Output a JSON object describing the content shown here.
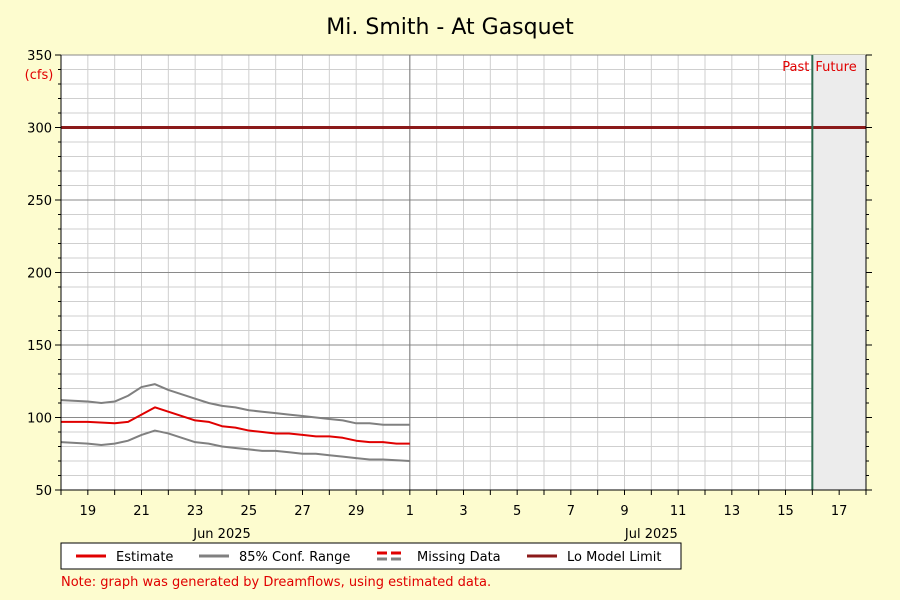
{
  "chart_data": {
    "type": "line",
    "title": "Mi. Smith - At Gasquet",
    "ylabel": "(cfs)",
    "xlabel": "",
    "ylim": [
      50,
      350
    ],
    "yticks": [
      50,
      100,
      150,
      200,
      250,
      300,
      350
    ],
    "xlim": [
      "2025-06-18",
      "2025-07-18"
    ],
    "xticks": [
      {
        "date": "2025-06-19",
        "label": "19"
      },
      {
        "date": "2025-06-21",
        "label": "21"
      },
      {
        "date": "2025-06-23",
        "label": "23"
      },
      {
        "date": "2025-06-25",
        "label": "25"
      },
      {
        "date": "2025-06-27",
        "label": "27"
      },
      {
        "date": "2025-06-29",
        "label": "29"
      },
      {
        "date": "2025-07-01",
        "label": "1"
      },
      {
        "date": "2025-07-03",
        "label": "3"
      },
      {
        "date": "2025-07-05",
        "label": "5"
      },
      {
        "date": "2025-07-07",
        "label": "7"
      },
      {
        "date": "2025-07-09",
        "label": "9"
      },
      {
        "date": "2025-07-11",
        "label": "11"
      },
      {
        "date": "2025-07-13",
        "label": "13"
      },
      {
        "date": "2025-07-15",
        "label": "15"
      },
      {
        "date": "2025-07-17",
        "label": "17"
      }
    ],
    "month_labels": [
      {
        "date": "2025-06-24",
        "label": "Jun 2025"
      },
      {
        "date": "2025-07-10",
        "label": "Jul 2025"
      }
    ],
    "month_boundary": "2025-07-01",
    "now_marker": {
      "date": "2025-07-16",
      "past_label": "Past",
      "future_label": "Future"
    },
    "series": [
      {
        "name": "Estimate",
        "color": "#e00000",
        "points": [
          [
            "2025-06-18",
            97
          ],
          [
            "2025-06-19",
            97
          ],
          [
            "2025-06-20",
            96
          ],
          [
            "2025-06-20.5",
            97
          ],
          [
            "2025-06-21",
            102
          ],
          [
            "2025-06-21.5",
            107
          ],
          [
            "2025-06-22",
            104
          ],
          [
            "2025-06-22.5",
            101
          ],
          [
            "2025-06-23",
            98
          ],
          [
            "2025-06-23.5",
            97
          ],
          [
            "2025-06-24",
            94
          ],
          [
            "2025-06-24.5",
            93
          ],
          [
            "2025-06-25",
            91
          ],
          [
            "2025-06-25.5",
            90
          ],
          [
            "2025-06-26",
            89
          ],
          [
            "2025-06-26.5",
            89
          ],
          [
            "2025-06-27",
            88
          ],
          [
            "2025-06-27.5",
            87
          ],
          [
            "2025-06-28",
            87
          ],
          [
            "2025-06-28.5",
            86
          ],
          [
            "2025-06-29",
            84
          ],
          [
            "2025-06-29.5",
            83
          ],
          [
            "2025-06-30",
            83
          ],
          [
            "2025-06-30.5",
            82
          ],
          [
            "2025-07-01",
            82
          ]
        ]
      },
      {
        "name": "85% Conf. Range",
        "color": "#808080",
        "points": [
          [
            "2025-06-18",
            112
          ],
          [
            "2025-06-19",
            111
          ],
          [
            "2025-06-19.5",
            110
          ],
          [
            "2025-06-20",
            111
          ],
          [
            "2025-06-20.5",
            115
          ],
          [
            "2025-06-21",
            121
          ],
          [
            "2025-06-21.5",
            123
          ],
          [
            "2025-06-22",
            119
          ],
          [
            "2025-06-22.5",
            116
          ],
          [
            "2025-06-23",
            113
          ],
          [
            "2025-06-23.5",
            110
          ],
          [
            "2025-06-24",
            108
          ],
          [
            "2025-06-24.5",
            107
          ],
          [
            "2025-06-25",
            105
          ],
          [
            "2025-06-25.5",
            104
          ],
          [
            "2025-06-26",
            103
          ],
          [
            "2025-06-26.5",
            102
          ],
          [
            "2025-06-27",
            101
          ],
          [
            "2025-06-27.5",
            100
          ],
          [
            "2025-06-28",
            99
          ],
          [
            "2025-06-28.5",
            98
          ],
          [
            "2025-06-29",
            96
          ],
          [
            "2025-06-29.5",
            96
          ],
          [
            "2025-06-30",
            95
          ],
          [
            "2025-07-01",
            95
          ]
        ]
      },
      {
        "name": "85% Conf. Range",
        "color": "#808080",
        "points": [
          [
            "2025-06-18",
            83
          ],
          [
            "2025-06-19",
            82
          ],
          [
            "2025-06-19.5",
            81
          ],
          [
            "2025-06-20",
            82
          ],
          [
            "2025-06-20.5",
            84
          ],
          [
            "2025-06-21",
            88
          ],
          [
            "2025-06-21.5",
            91
          ],
          [
            "2025-06-22",
            89
          ],
          [
            "2025-06-22.5",
            86
          ],
          [
            "2025-06-23",
            83
          ],
          [
            "2025-06-23.5",
            82
          ],
          [
            "2025-06-24",
            80
          ],
          [
            "2025-06-24.5",
            79
          ],
          [
            "2025-06-25",
            78
          ],
          [
            "2025-06-25.5",
            77
          ],
          [
            "2025-06-26",
            77
          ],
          [
            "2025-06-26.5",
            76
          ],
          [
            "2025-06-27",
            75
          ],
          [
            "2025-06-27.5",
            75
          ],
          [
            "2025-06-28",
            74
          ],
          [
            "2025-06-28.5",
            73
          ],
          [
            "2025-06-29",
            72
          ],
          [
            "2025-06-29.5",
            71
          ],
          [
            "2025-06-30",
            71
          ],
          [
            "2025-07-01",
            70
          ]
        ]
      }
    ],
    "lo_model_limit": {
      "name": "Lo Model Limit",
      "value": 300,
      "color": "#8b1a1a"
    },
    "legend": {
      "placement": "bottom",
      "entries": [
        {
          "label": "Estimate",
          "color": "#e00000",
          "style": "solid"
        },
        {
          "label": "85% Conf. Range",
          "color": "#808080",
          "style": "solid"
        },
        {
          "label": "Missing Data",
          "color": "#e00000",
          "color2": "#808080",
          "style": "dashed"
        },
        {
          "label": "Lo Model Limit",
          "color": "#8b1a1a",
          "style": "solid"
        }
      ]
    },
    "note": "Note: graph was generated by Dreamflows, using estimated data.",
    "grid": true
  }
}
